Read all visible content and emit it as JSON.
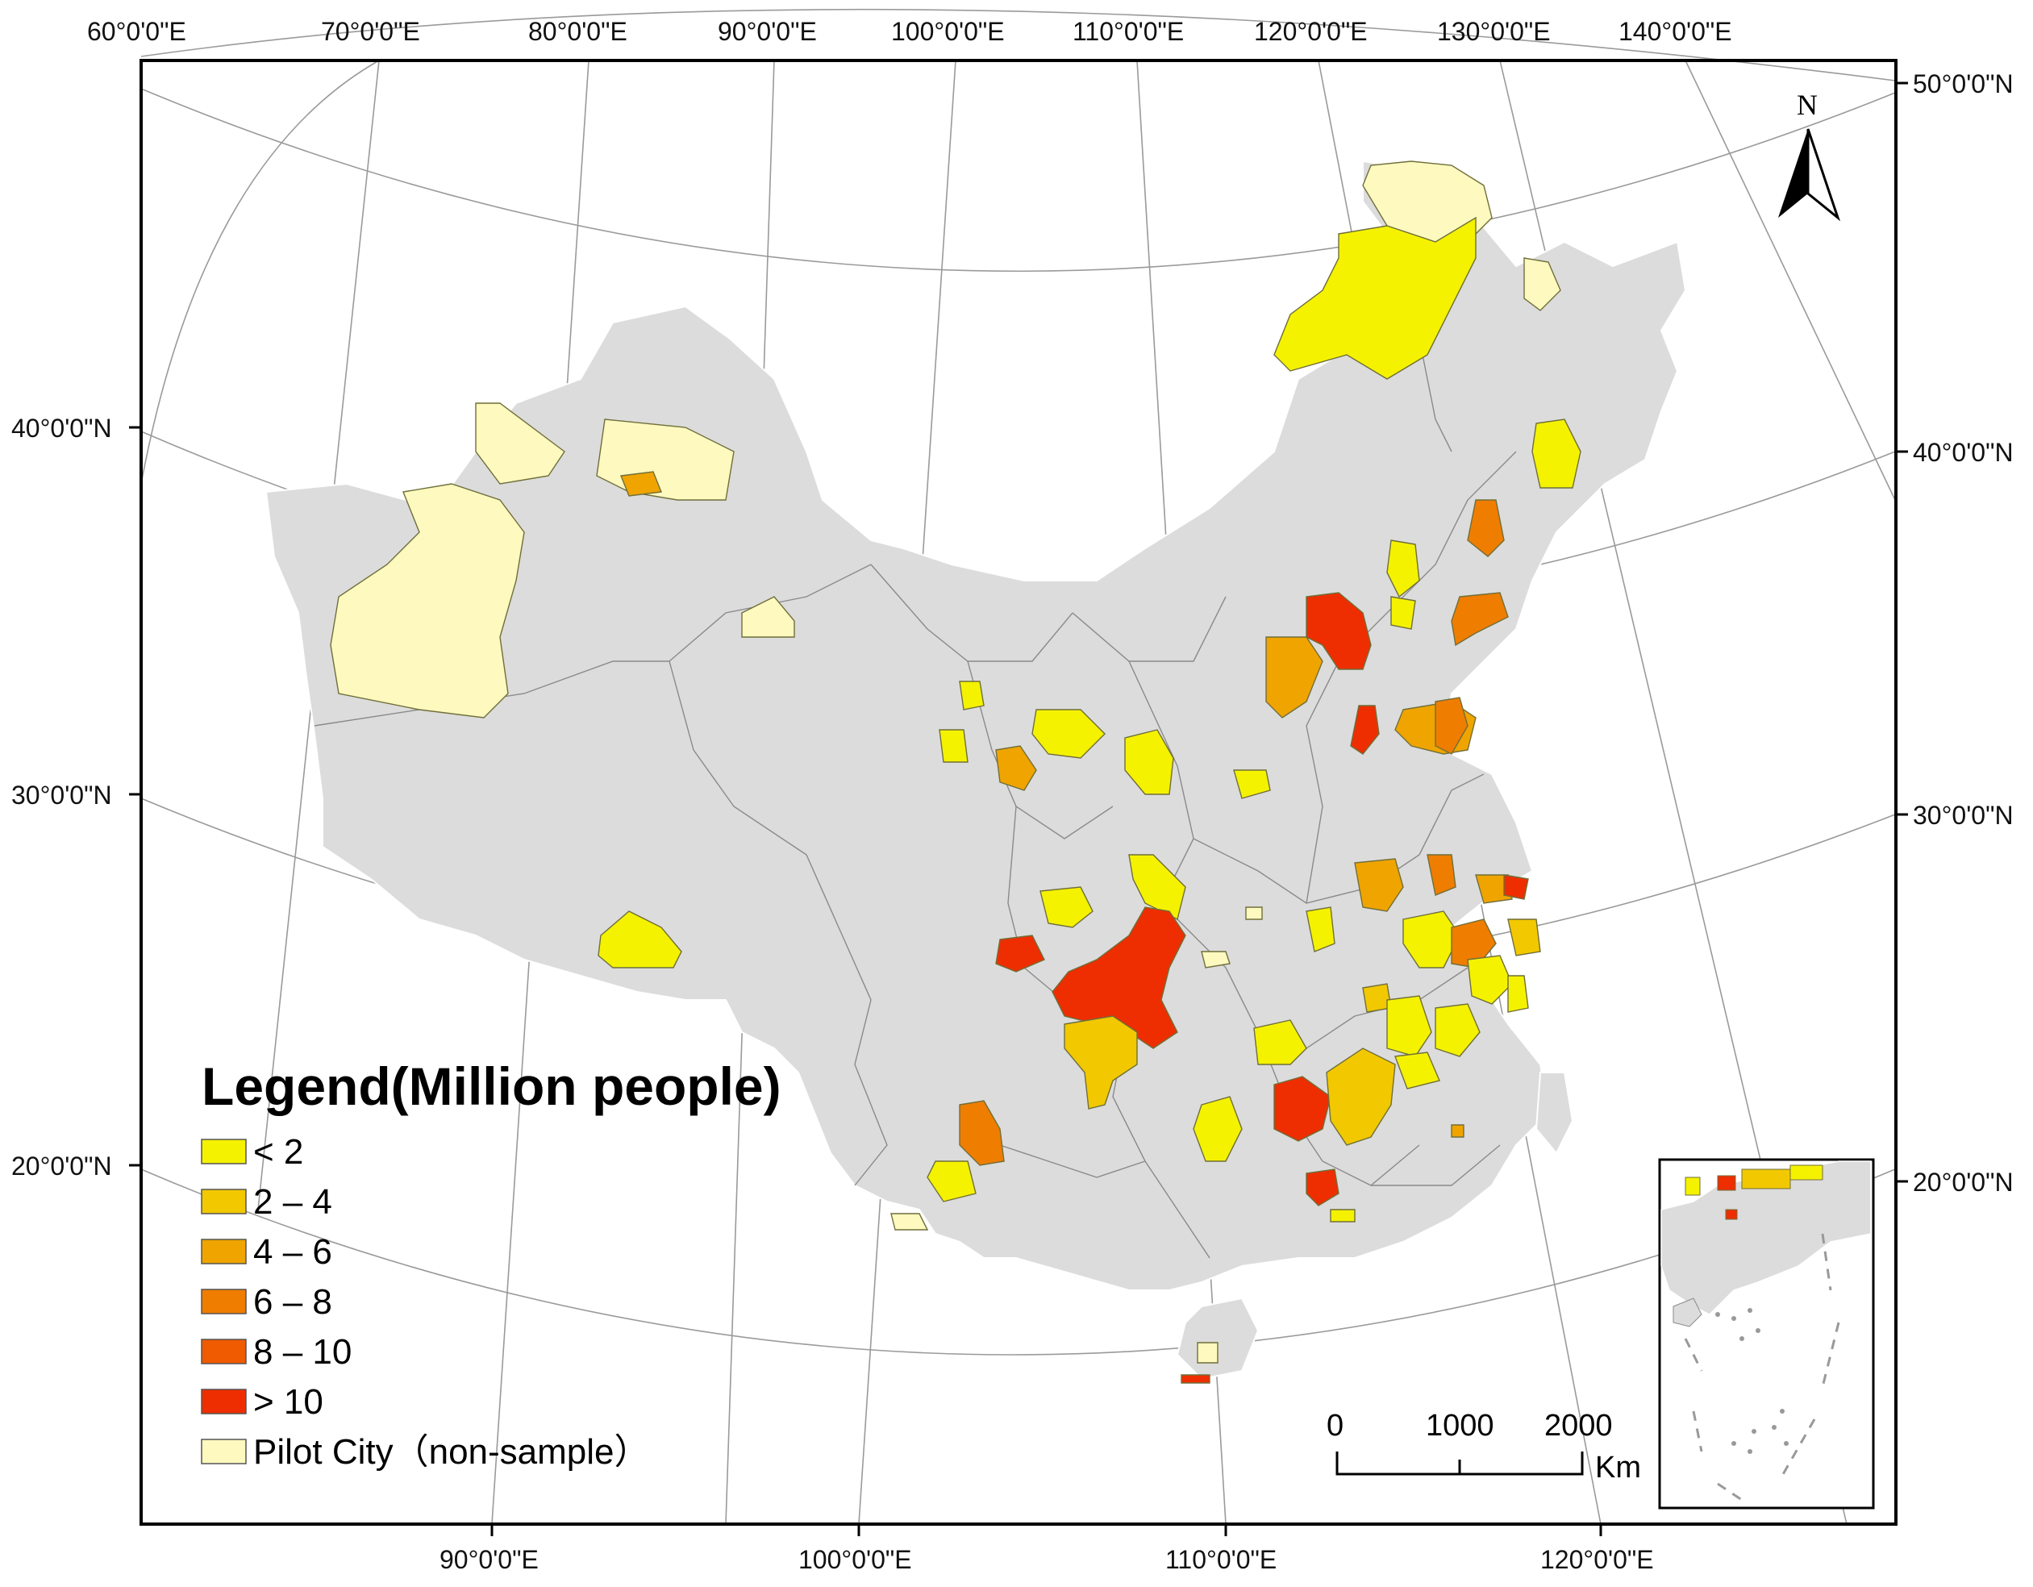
{
  "top_lon_labels": [
    "60°0'0\"E",
    "70°0'0\"E",
    "80°0'0\"E",
    "90°0'0\"E",
    "100°0'0\"E",
    "110°0'0\"E",
    "120°0'0\"E",
    "130°0'0\"E",
    "140°0'0\"E"
  ],
  "bottom_lon_labels": [
    "90°0'0\"E",
    "100°0'0\"E",
    "110°0'0\"E",
    "120°0'0\"E"
  ],
  "left_lat_labels": [
    "40°0'0\"N",
    "30°0'0\"N",
    "20°0'0\"N"
  ],
  "right_lat_labels": [
    "50°0'0\"N",
    "40°0'0\"N",
    "30°0'0\"N",
    "20°0'0\"N"
  ],
  "north_arrow": {
    "label": "N",
    "icon": "north-arrow-icon"
  },
  "scale_bar": {
    "ticks": [
      "0",
      "1000",
      "2000"
    ],
    "unit": "Km"
  },
  "legend": {
    "title": "Legend(Million people)",
    "items": [
      {
        "label": "< 2",
        "color": "#f5f200"
      },
      {
        "label": "2 – 4",
        "color": "#f2c800"
      },
      {
        "label": "4 – 6",
        "color": "#f0a400"
      },
      {
        "label": "6 – 8",
        "color": "#ef7d00"
      },
      {
        "label": "8 – 10",
        "color": "#f05a00"
      },
      {
        "label": "> 10",
        "color": "#ee2e00"
      },
      {
        "label": "Pilot City（non-sample）",
        "color": "#fdf9bf"
      }
    ]
  },
  "colors": {
    "land": "#dcdcdc",
    "frame": "#000000",
    "graticule": "#9a9a9a"
  }
}
